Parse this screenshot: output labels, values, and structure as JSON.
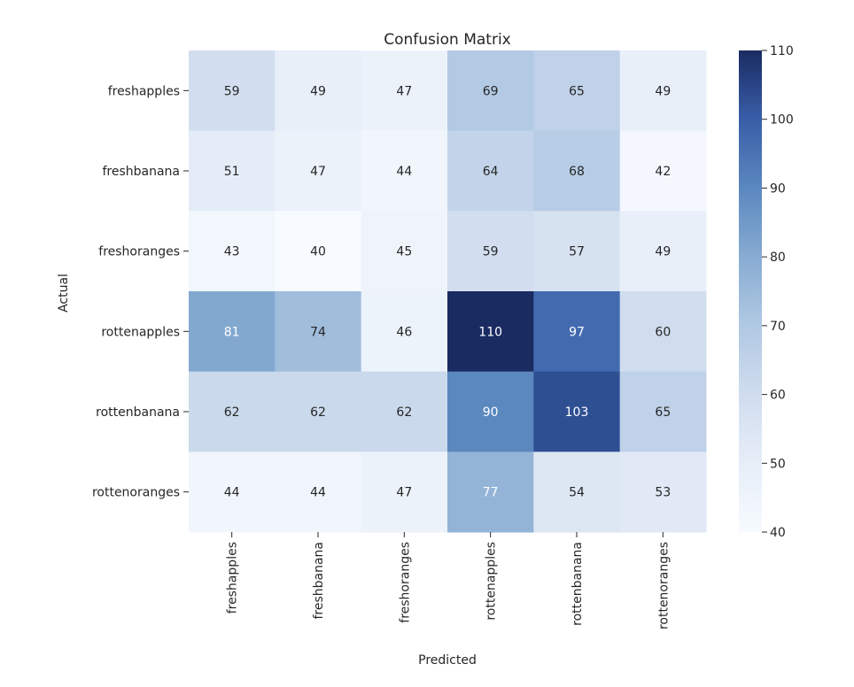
{
  "chart_data": {
    "type": "heatmap",
    "title": "Confusion Matrix",
    "xlabel": "Predicted",
    "ylabel": "Actual",
    "x_categories": [
      "freshapples",
      "freshbanana",
      "freshoranges",
      "rottenapples",
      "rottenbanana",
      "rottenoranges"
    ],
    "y_categories": [
      "freshapples",
      "freshbanana",
      "freshoranges",
      "rottenapples",
      "rottenbanana",
      "rottenoranges"
    ],
    "values": [
      [
        59,
        49,
        47,
        69,
        65,
        49
      ],
      [
        51,
        47,
        44,
        64,
        68,
        42
      ],
      [
        43,
        40,
        45,
        59,
        57,
        49
      ],
      [
        81,
        74,
        46,
        110,
        97,
        60
      ],
      [
        62,
        62,
        62,
        90,
        103,
        65
      ],
      [
        44,
        44,
        47,
        77,
        54,
        53
      ]
    ],
    "colorbar": {
      "min": 40,
      "max": 110,
      "ticks": [
        40,
        50,
        60,
        70,
        80,
        90,
        100,
        110
      ],
      "colormap": "Blues",
      "low_color": "#f7fbff",
      "high_color": "#1a2b62"
    }
  }
}
